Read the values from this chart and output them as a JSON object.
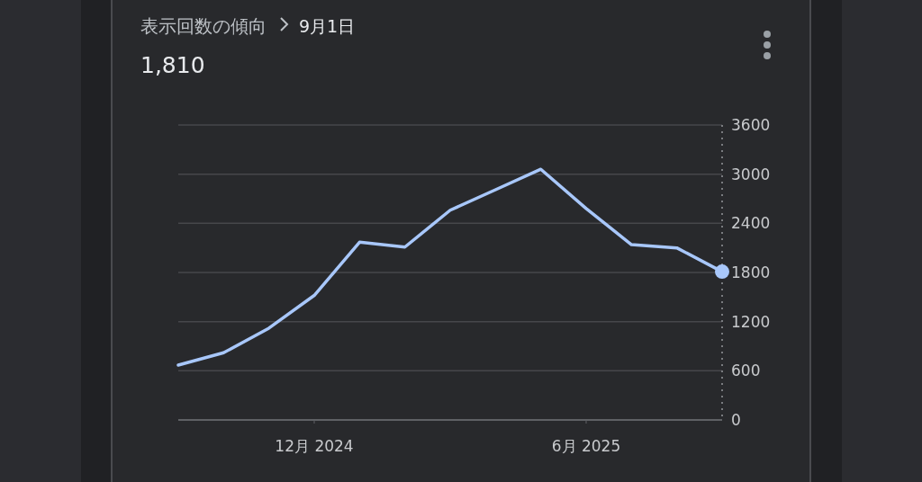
{
  "chart_data": {
    "type": "line",
    "title": "表示回数の傾向",
    "subtitle": "9月1日",
    "annotations": [
      "1,810"
    ],
    "categories": [
      null,
      null,
      null,
      "12月 2024",
      null,
      null,
      null,
      null,
      null,
      "6月 2025",
      null,
      null,
      null
    ],
    "series": [
      {
        "color": "#a8c7fa",
        "values": [
          670,
          820,
          1120,
          1520,
          2170,
          2110,
          2560,
          2810,
          3060,
          2580,
          2140,
          2100,
          1810
        ]
      },
      {
        "type": "scatter",
        "color": "#a8c7fa",
        "marker": "circle",
        "values": [
          null,
          null,
          null,
          null,
          null,
          null,
          null,
          null,
          null,
          null,
          null,
          null,
          1810
        ]
      }
    ],
    "ylim": [
      0,
      3600
    ],
    "yticks": [
      0,
      600,
      1200,
      1800,
      2400,
      3000,
      3600
    ],
    "grid": "y"
  }
}
